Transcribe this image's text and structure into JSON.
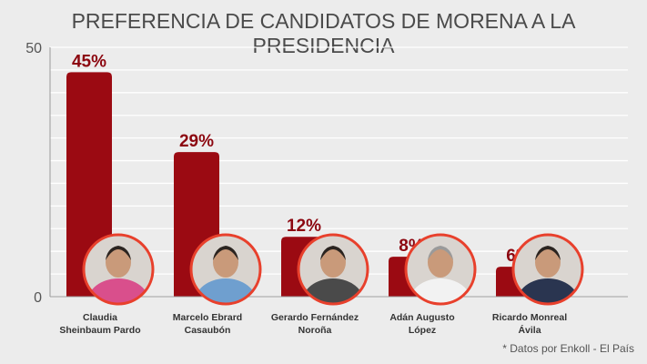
{
  "chart_data": {
    "type": "bar",
    "title": "PREFERENCIA DE CANDIDATOS DE MORENA A LA PRESIDENCIA",
    "categories": [
      [
        "Claudia",
        "Sheinbaum Pardo"
      ],
      [
        "Marcelo Ebrard",
        "Casaubón"
      ],
      [
        "Gerardo Fernández",
        "Noroña"
      ],
      [
        "Adán Augusto",
        "López"
      ],
      [
        "Ricardo Monreal",
        "Ávila"
      ]
    ],
    "values": [
      45,
      29,
      12,
      8,
      6
    ],
    "value_labels": [
      "45%",
      "29%",
      "12%",
      "8%",
      "6%"
    ],
    "ylim": [
      0,
      50
    ],
    "yticks": [
      "0",
      "50"
    ],
    "grid": true,
    "colors": {
      "bar": "#9b0a12",
      "label": "#8c0710",
      "avatar_ring": "#e8402c",
      "grid": "#ffffff",
      "axis": "#9a9a9a"
    }
  },
  "footnote": "* Datos por Enkoll - El País"
}
